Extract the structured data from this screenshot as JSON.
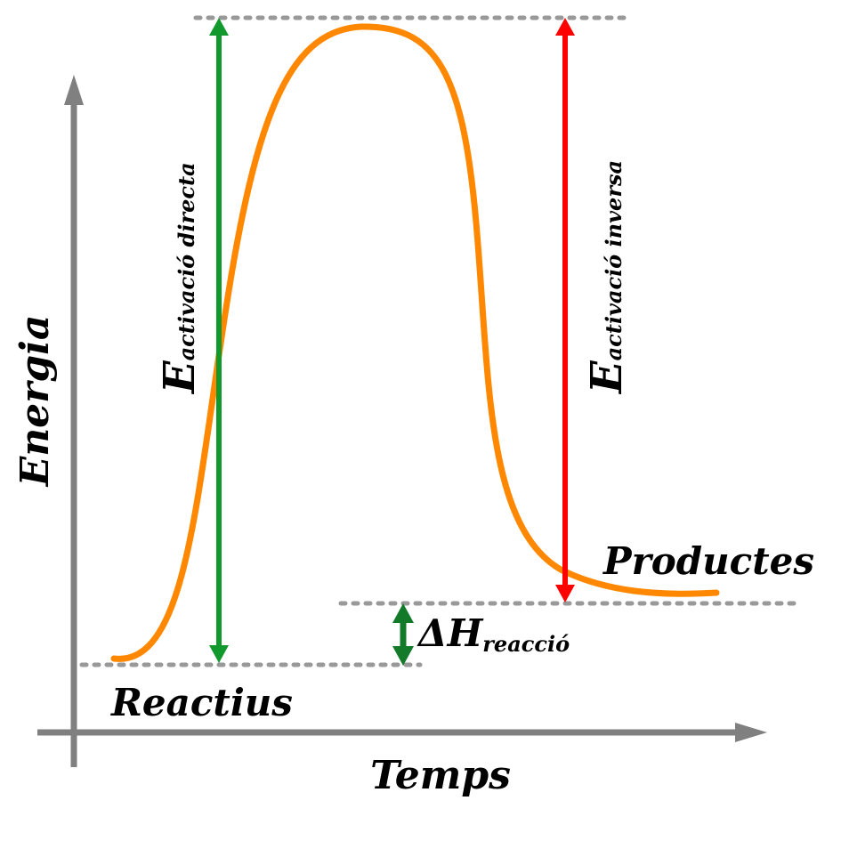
{
  "axes": {
    "y_label": "Energia",
    "x_label": "Temps"
  },
  "levels": {
    "reactants_label": "Reactius",
    "products_label": "Productes"
  },
  "forward_activation": {
    "symbol": "E",
    "subscript": "activació directa"
  },
  "reverse_activation": {
    "symbol": "E",
    "subscript": "activació inversa"
  },
  "enthalpy": {
    "symbol": "ΔH",
    "subscript": "reacció"
  },
  "colors": {
    "axis": "#808080",
    "curve": "#ff8800",
    "forward_arrow": "#11992e",
    "reverse_arrow": "#ff0000",
    "enthalpy_arrow": "#137a2a",
    "guides": "#999999"
  }
}
